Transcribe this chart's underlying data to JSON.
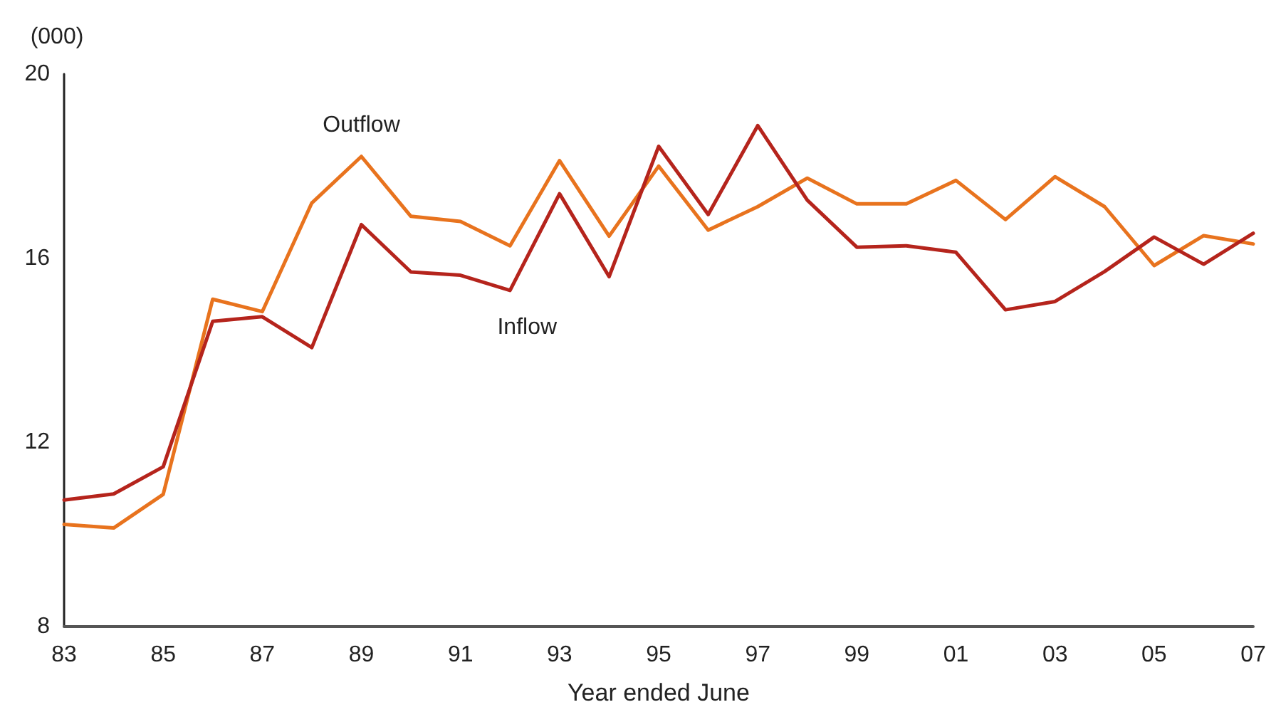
{
  "chart_data": {
    "type": "line",
    "ylabel": "(000)",
    "xlabel": "Year ended June",
    "categories": [
      "83",
      null,
      "85",
      null,
      "87",
      null,
      "89",
      null,
      "91",
      null,
      "93",
      null,
      "95",
      null,
      "97",
      null,
      "99",
      null,
      "01",
      null,
      "03",
      null,
      "05",
      null,
      "07"
    ],
    "series": [
      {
        "name": "Outflow",
        "color": "#e8731e",
        "values": [
          10.22,
          10.14,
          10.87,
          15.11,
          14.84,
          17.2,
          18.21,
          16.91,
          16.8,
          16.27,
          18.12,
          16.48,
          18.0,
          16.61,
          17.12,
          17.74,
          17.18,
          17.18,
          17.69,
          16.84,
          17.77,
          17.12,
          15.84,
          16.49,
          16.31
        ]
      },
      {
        "name": "Inflow",
        "color": "#b5241c",
        "values": [
          10.75,
          10.88,
          11.47,
          14.63,
          14.73,
          14.06,
          16.73,
          15.7,
          15.63,
          15.3,
          17.4,
          15.6,
          18.43,
          16.95,
          18.88,
          17.26,
          16.24,
          16.27,
          16.13,
          14.88,
          15.06,
          15.71,
          16.46,
          15.87,
          16.54
        ]
      }
    ],
    "ylim": [
      8,
      20
    ],
    "yticks": [
      8,
      12,
      16,
      20
    ],
    "grid": false,
    "legend": false,
    "marker": "none",
    "line_style": "solid"
  }
}
